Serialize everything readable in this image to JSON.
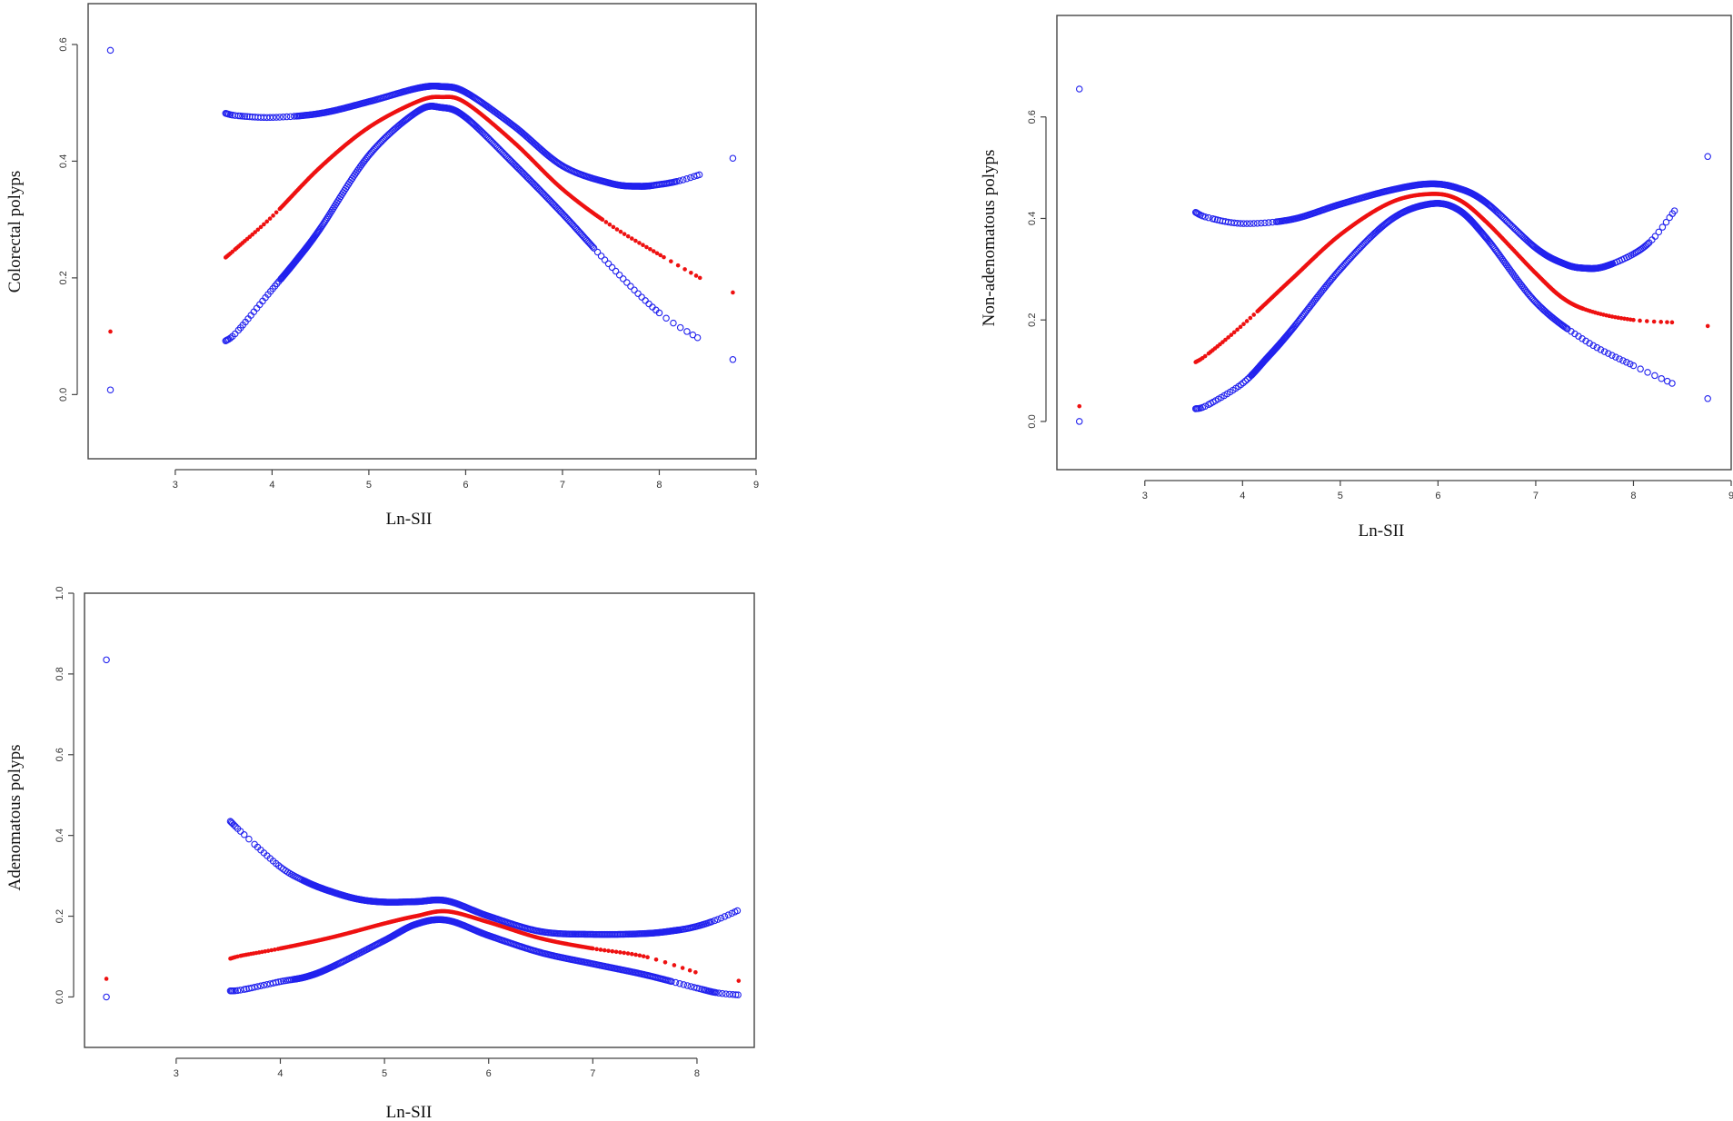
{
  "colors": {
    "ci": "#2222ee",
    "fit": "#ee1111",
    "axis": "#444444"
  },
  "chart_data": [
    {
      "type": "scatter",
      "id": "colorectal",
      "xlabel": "Ln-SII",
      "ylabel": "Colorectal polyps",
      "xlim": [
        2.1,
        9.0
      ],
      "ylim": [
        -0.11,
        0.67
      ],
      "xticks": [
        "3",
        "4",
        "5",
        "6",
        "7",
        "8",
        "9"
      ],
      "yticks": [
        "0.0",
        "0.2",
        "0.4",
        "0.6"
      ],
      "series": [
        {
          "name": "Upper 95% CI",
          "x": [
            2.33,
            3.52,
            3.64,
            4.0,
            4.5,
            5.0,
            5.5,
            5.75,
            6.0,
            6.5,
            7.0,
            7.5,
            7.8,
            8.0,
            8.2,
            8.42,
            8.76
          ],
          "y": [
            0.59,
            0.482,
            0.478,
            0.475,
            0.482,
            0.502,
            0.525,
            0.528,
            0.518,
            0.46,
            0.392,
            0.362,
            0.357,
            0.36,
            0.366,
            0.377,
            0.405
          ]
        },
        {
          "name": "Fitted",
          "x": [
            2.33,
            3.52,
            3.64,
            4.0,
            4.5,
            5.0,
            5.5,
            5.75,
            6.0,
            6.5,
            7.0,
            7.5,
            8.0,
            8.42,
            8.76
          ],
          "y": [
            0.108,
            0.235,
            0.252,
            0.305,
            0.39,
            0.458,
            0.502,
            0.51,
            0.5,
            0.432,
            0.352,
            0.29,
            0.24,
            0.2,
            0.175
          ]
        },
        {
          "name": "Lower 95% CI",
          "x": [
            2.33,
            3.52,
            3.64,
            4.0,
            4.25,
            4.5,
            5.0,
            5.5,
            5.75,
            6.0,
            6.5,
            7.0,
            7.5,
            8.0,
            8.42,
            8.76
          ],
          "y": [
            0.008,
            0.092,
            0.108,
            0.18,
            0.23,
            0.285,
            0.41,
            0.485,
            0.492,
            0.475,
            0.395,
            0.31,
            0.22,
            0.14,
            0.095,
            0.06
          ]
        }
      ]
    },
    {
      "type": "scatter",
      "id": "non-adenomatous",
      "xlabel": "Ln-SII",
      "ylabel": "Non-adenomatous polyps",
      "xlim": [
        2.1,
        9.0
      ],
      "ylim": [
        -0.095,
        0.8
      ],
      "xticks": [
        "3",
        "4",
        "5",
        "6",
        "7",
        "8",
        "9"
      ],
      "yticks": [
        "0.0",
        "0.2",
        "0.4",
        "0.6"
      ],
      "series": [
        {
          "name": "Upper 95% CI",
          "x": [
            2.33,
            3.52,
            3.64,
            4.0,
            4.5,
            5.0,
            5.5,
            5.9,
            6.2,
            6.5,
            7.0,
            7.3,
            7.5,
            7.7,
            8.0,
            8.2,
            8.42,
            8.76
          ],
          "y": [
            0.655,
            0.412,
            0.402,
            0.39,
            0.398,
            0.428,
            0.455,
            0.468,
            0.46,
            0.43,
            0.342,
            0.31,
            0.302,
            0.305,
            0.33,
            0.36,
            0.415,
            0.522
          ]
        },
        {
          "name": "Fitted",
          "x": [
            2.33,
            3.52,
            3.64,
            4.0,
            4.5,
            5.0,
            5.5,
            5.9,
            6.2,
            6.5,
            7.0,
            7.3,
            7.6,
            8.0,
            8.42,
            8.76
          ],
          "y": [
            0.03,
            0.117,
            0.132,
            0.19,
            0.28,
            0.368,
            0.43,
            0.448,
            0.438,
            0.392,
            0.292,
            0.24,
            0.215,
            0.2,
            0.195,
            0.188
          ]
        },
        {
          "name": "Lower 95% CI",
          "x": [
            2.33,
            3.52,
            3.64,
            4.0,
            4.25,
            4.5,
            5.0,
            5.5,
            5.9,
            6.2,
            6.5,
            7.0,
            7.5,
            8.0,
            8.42,
            8.76
          ],
          "y": [
            0.0,
            0.025,
            0.032,
            0.075,
            0.125,
            0.18,
            0.3,
            0.395,
            0.428,
            0.418,
            0.36,
            0.235,
            0.16,
            0.11,
            0.073,
            0.045
          ]
        }
      ]
    },
    {
      "type": "scatter",
      "id": "adenomatous",
      "xlabel": "Ln-SII",
      "ylabel": "Adenomatous polyps",
      "xlim": [
        2.12,
        8.55
      ],
      "ylim": [
        -0.125,
        1.0
      ],
      "xticks": [
        "3",
        "4",
        "5",
        "6",
        "7",
        "8"
      ],
      "yticks": [
        "0.0",
        "0.2",
        "0.4",
        "0.6",
        "0.8",
        "1.0"
      ],
      "series": [
        {
          "name": "Upper 95% CI",
          "x": [
            2.33,
            3.52,
            3.64,
            4.0,
            4.25,
            4.5,
            4.75,
            5.0,
            5.3,
            5.6,
            6.0,
            6.5,
            7.0,
            7.5,
            7.8,
            8.0,
            8.2,
            8.4
          ],
          "y": [
            0.835,
            0.435,
            0.405,
            0.322,
            0.285,
            0.26,
            0.242,
            0.235,
            0.236,
            0.238,
            0.2,
            0.162,
            0.155,
            0.157,
            0.165,
            0.175,
            0.192,
            0.215
          ]
        },
        {
          "name": "Fitted",
          "x": [
            2.33,
            3.52,
            3.64,
            4.0,
            4.5,
            5.0,
            5.3,
            5.6,
            6.0,
            6.5,
            7.0,
            7.5,
            8.0,
            8.4
          ],
          "y": [
            0.045,
            0.095,
            0.103,
            0.12,
            0.148,
            0.182,
            0.2,
            0.212,
            0.185,
            0.145,
            0.12,
            0.1,
            0.06,
            0.04
          ]
        },
        {
          "name": "Lower 95% CI",
          "x": [
            2.33,
            3.52,
            3.64,
            4.0,
            4.25,
            4.5,
            5.0,
            5.3,
            5.6,
            6.0,
            6.5,
            7.0,
            7.5,
            8.0,
            8.2,
            8.4
          ],
          "y": [
            0.0,
            0.015,
            0.018,
            0.038,
            0.05,
            0.075,
            0.14,
            0.18,
            0.19,
            0.152,
            0.11,
            0.082,
            0.055,
            0.022,
            0.01,
            0.005
          ]
        }
      ]
    }
  ]
}
